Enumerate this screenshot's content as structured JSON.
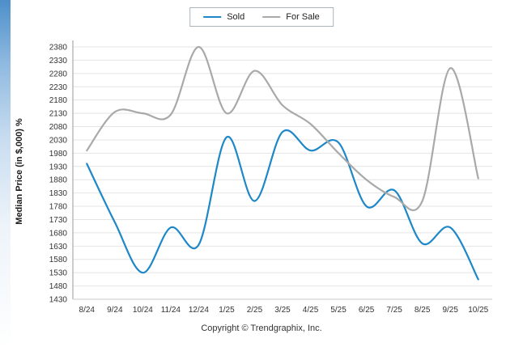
{
  "chart_data": {
    "type": "line",
    "title": "",
    "ylabel": "Median Price (in $,000) %",
    "xlabel": "",
    "categories": [
      "8/24",
      "9/24",
      "10/24",
      "11/24",
      "12/24",
      "1/25",
      "2/25",
      "3/25",
      "4/25",
      "5/25",
      "6/25",
      "7/25",
      "8/25",
      "9/25",
      "10/25"
    ],
    "series": [
      {
        "name": "Sold",
        "color": "#1d87c8",
        "values": [
          1940,
          1720,
          1530,
          1700,
          1635,
          2040,
          1800,
          2060,
          1990,
          2020,
          1780,
          1840,
          1640,
          1700,
          1505
        ]
      },
      {
        "name": "For Sale",
        "color": "#a9a9a9",
        "values": [
          1990,
          2135,
          2130,
          2125,
          2380,
          2130,
          2290,
          2160,
          2090,
          1980,
          1880,
          1815,
          1800,
          2300,
          1885
        ]
      }
    ],
    "ylim": [
      1430,
      2380
    ],
    "ytick_step": 50,
    "grid": true,
    "legend_position": "top-center"
  },
  "footer": {
    "copyright": "Copyright © Trendgraphix, Inc."
  }
}
